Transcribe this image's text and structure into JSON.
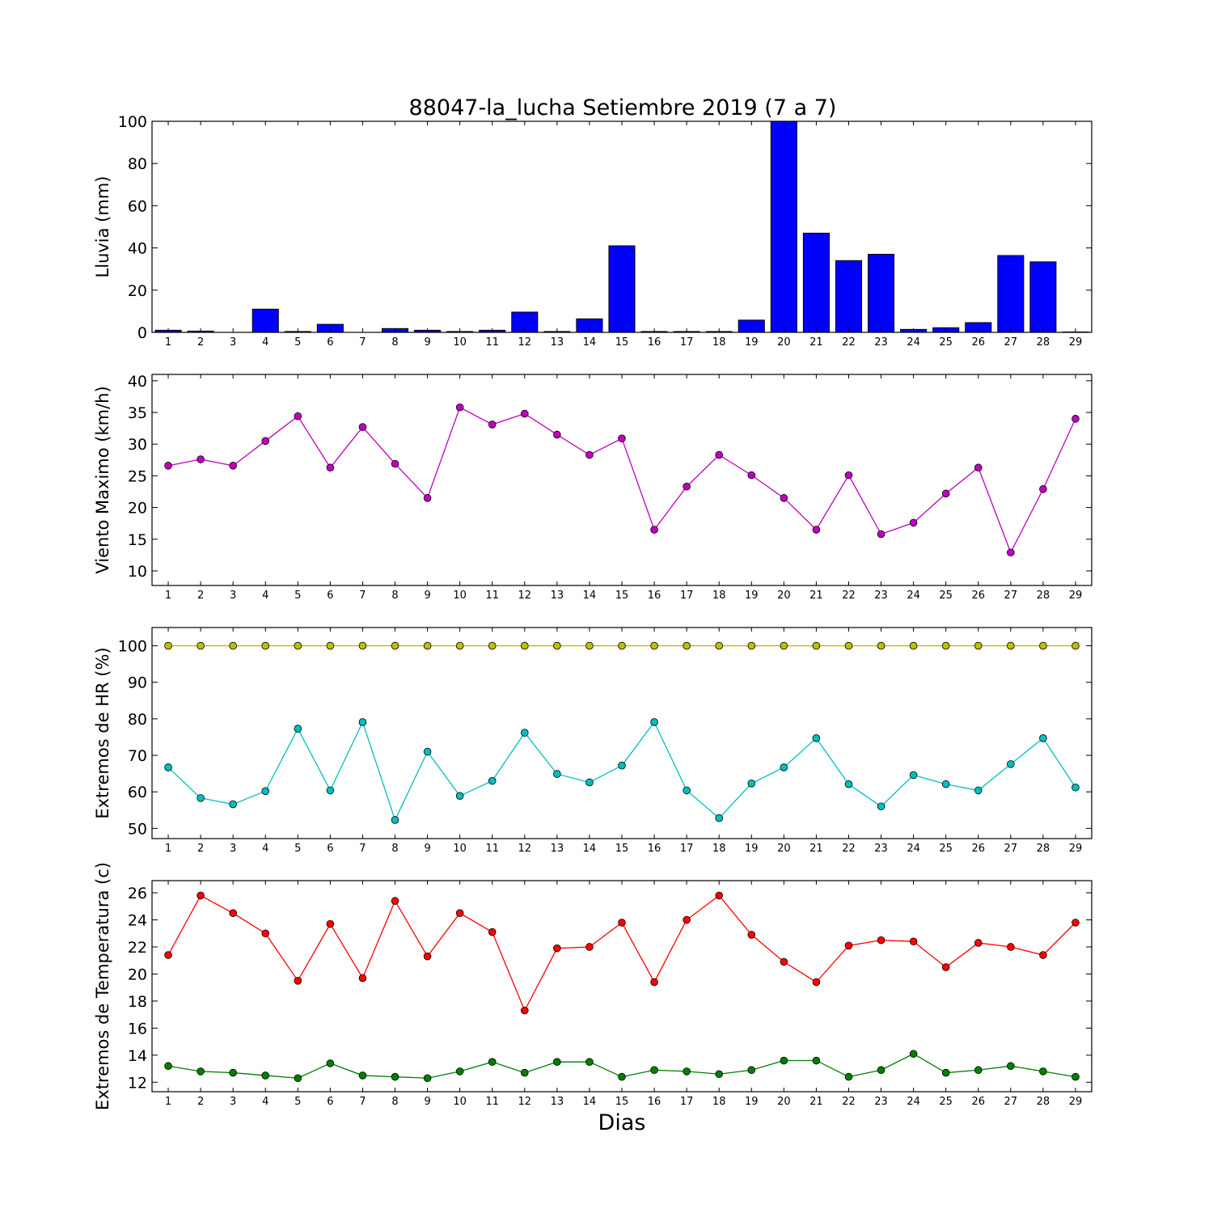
{
  "chart_data": [
    {
      "type": "bar",
      "title": "88047-la_lucha Setiembre 2019  (7 a 7)",
      "xlabel": "",
      "ylabel": "Lluvia (mm)",
      "categories": [
        "1",
        "2",
        "3",
        "4",
        "5",
        "6",
        "7",
        "8",
        "9",
        "10",
        "11",
        "12",
        "13",
        "14",
        "15",
        "16",
        "17",
        "18",
        "19",
        "20",
        "21",
        "22",
        "23",
        "24",
        "25",
        "26",
        "27",
        "28",
        "29"
      ],
      "values": [
        1.0,
        0.6,
        0,
        11.0,
        0.4,
        3.8,
        0,
        1.8,
        1.0,
        0.4,
        1.0,
        9.6,
        0.4,
        6.4,
        41.0,
        0.4,
        0.4,
        0.4,
        5.8,
        100,
        47.0,
        34.0,
        37.0,
        1.4,
        2.2,
        4.6,
        36.4,
        33.4,
        0.2
      ],
      "ylim": [
        0,
        100
      ],
      "yticks": [
        0,
        20,
        40,
        60,
        80,
        100
      ],
      "color": "#0000ff",
      "grid": false
    },
    {
      "type": "line",
      "title": "",
      "xlabel": "",
      "ylabel": "Viento Maximo (km/h)",
      "categories": [
        "1",
        "2",
        "3",
        "4",
        "5",
        "6",
        "7",
        "8",
        "9",
        "10",
        "11",
        "12",
        "13",
        "14",
        "15",
        "16",
        "17",
        "18",
        "19",
        "20",
        "21",
        "22",
        "23",
        "24",
        "25",
        "26",
        "27",
        "28",
        "29"
      ],
      "series": [
        {
          "color": "#bf00bf",
          "values": [
            26.6,
            27.6,
            26.6,
            30.5,
            34.4,
            26.3,
            32.7,
            26.9,
            21.5,
            35.8,
            33.1,
            34.8,
            31.5,
            28.3,
            30.9,
            16.5,
            23.3,
            28.3,
            25.1,
            21.5,
            16.5,
            25.1,
            15.8,
            17.6,
            22.2,
            26.3,
            12.9,
            22.9,
            34.0
          ]
        }
      ],
      "ylim": [
        7.7,
        41.0
      ],
      "yticks": [
        10,
        15,
        20,
        25,
        30,
        35,
        40
      ],
      "grid": false
    },
    {
      "type": "line",
      "title": "",
      "xlabel": "",
      "ylabel": "Extremos de HR (%)",
      "categories": [
        "1",
        "2",
        "3",
        "4",
        "5",
        "6",
        "7",
        "8",
        "9",
        "10",
        "11",
        "12",
        "13",
        "14",
        "15",
        "16",
        "17",
        "18",
        "19",
        "20",
        "21",
        "22",
        "23",
        "24",
        "25",
        "26",
        "27",
        "28",
        "29"
      ],
      "series": [
        {
          "color": "#bfbf00",
          "values": [
            100,
            100,
            100,
            100,
            100,
            100,
            100,
            100,
            100,
            100,
            100,
            100,
            100,
            100,
            100,
            100,
            100,
            100,
            100,
            100,
            100,
            100,
            100,
            100,
            100,
            100,
            100,
            100,
            100
          ]
        },
        {
          "color": "#00bfbf",
          "values": [
            66.7,
            58.3,
            56.6,
            60.2,
            77.3,
            60.4,
            79.1,
            52.3,
            71.0,
            58.9,
            63.0,
            76.2,
            64.9,
            62.6,
            67.2,
            79.1,
            60.4,
            52.8,
            62.3,
            66.7,
            74.7,
            62.1,
            56.0,
            64.6,
            62.1,
            60.4,
            67.6,
            74.7,
            61.2
          ]
        }
      ],
      "ylim": [
        47.2,
        105.0
      ],
      "yticks": [
        50,
        60,
        70,
        80,
        90,
        100
      ],
      "grid": false
    },
    {
      "type": "line",
      "title": "",
      "xlabel": "Dias",
      "ylabel": "Extremos de Temperatura (c)",
      "categories": [
        "1",
        "2",
        "3",
        "4",
        "5",
        "6",
        "7",
        "8",
        "9",
        "10",
        "11",
        "12",
        "13",
        "14",
        "15",
        "16",
        "17",
        "18",
        "19",
        "20",
        "21",
        "22",
        "23",
        "24",
        "25",
        "26",
        "27",
        "28",
        "29"
      ],
      "series": [
        {
          "color": "#ff0000",
          "values": [
            21.4,
            25.8,
            24.5,
            23.0,
            19.5,
            23.7,
            19.7,
            25.4,
            21.3,
            24.5,
            23.1,
            17.3,
            21.9,
            22.0,
            23.8,
            19.4,
            24.0,
            25.8,
            22.9,
            20.9,
            19.4,
            22.1,
            22.5,
            22.4,
            20.5,
            22.3,
            22.0,
            21.4,
            23.8
          ]
        },
        {
          "color": "#007f00",
          "values": [
            13.2,
            12.8,
            12.7,
            12.5,
            12.3,
            13.4,
            12.5,
            12.4,
            12.3,
            12.8,
            13.5,
            12.7,
            13.5,
            13.5,
            12.4,
            12.9,
            12.8,
            12.6,
            12.9,
            13.6,
            13.6,
            12.4,
            12.9,
            14.1,
            12.7,
            12.9,
            13.2,
            12.8,
            12.4
          ]
        }
      ],
      "ylim": [
        11.3,
        26.9
      ],
      "yticks": [
        12,
        14,
        16,
        18,
        20,
        22,
        24,
        26
      ],
      "grid": false
    }
  ]
}
